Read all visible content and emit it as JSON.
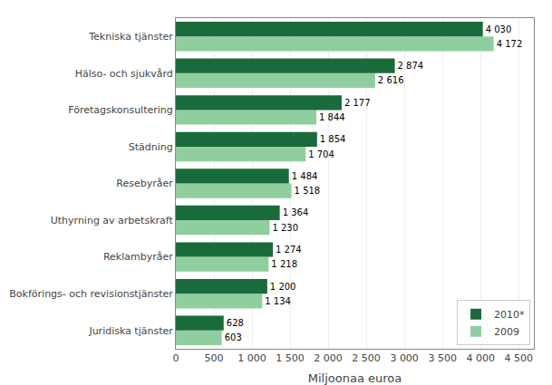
{
  "chart_data": {
    "type": "bar",
    "orientation": "horizontal",
    "categories": [
      "Juridiska tjänster",
      "Bokförings- och revisionstjänster",
      "Reklambyråer",
      "Uthyrning av arbetskraft",
      "Resebyråer",
      "Städning",
      "Företagskonsultering",
      "Hälso- och sjukvård",
      "Tekniska tjänster"
    ],
    "series": [
      {
        "name": "2010*",
        "color": "#1a6b3c",
        "values": [
          628,
          1200,
          1274,
          1364,
          1484,
          1854,
          2177,
          2874,
          4030
        ],
        "value_labels": [
          "628",
          "1 200",
          "1 274",
          "1 364",
          "1 484",
          "1 854",
          "2 177",
          "2 874",
          "4 030"
        ]
      },
      {
        "name": "2009",
        "color": "#8fce9e",
        "values": [
          603,
          1134,
          1218,
          1230,
          1518,
          1704,
          1844,
          2616,
          4172
        ],
        "value_labels": [
          "603",
          "1 134",
          "1 218",
          "1 230",
          "1 518",
          "1 704",
          "1 844",
          "2 616",
          "4 172"
        ]
      }
    ],
    "xlabel": "Miljoonaa euroa",
    "xlim": [
      0,
      4700
    ],
    "xticks": [
      0,
      500,
      {
        "value": 1000,
        "label": "1 000"
      },
      {
        "value": 1500,
        "label": "1 500"
      },
      {
        "value": 2000,
        "label": "2 000"
      },
      {
        "value": 2500,
        "label": "2 500"
      },
      {
        "value": 3000,
        "label": "3 000"
      },
      {
        "value": 3500,
        "label": "3 500"
      },
      {
        "value": 4000,
        "label": "4 000"
      },
      {
        "value": 4500,
        "label": "4 500"
      }
    ],
    "grid": true,
    "legend": "lower right",
    "data_labels": true
  }
}
